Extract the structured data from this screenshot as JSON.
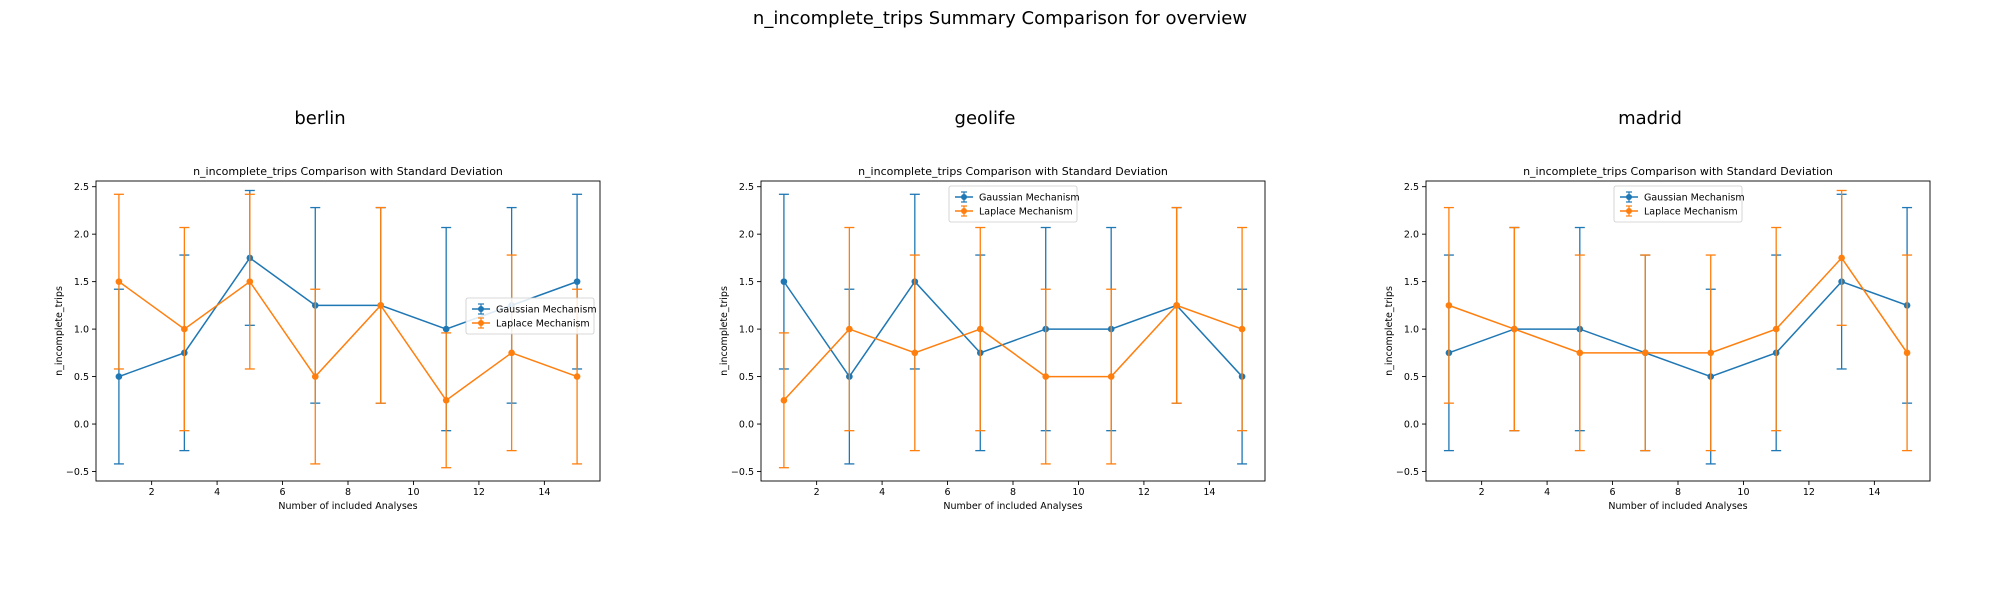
{
  "suptitle": "n_incomplete_trips Summary Comparison for overview",
  "colors": {
    "gaussian": "#1f77b4",
    "laplace": "#ff7f0e"
  },
  "chart_data": [
    {
      "type": "line",
      "panel_title": "berlin",
      "title": "n_incomplete_trips Comparison with Standard Deviation",
      "xlabel": "Number of included Analyses",
      "ylabel": "n_incomplete_trips",
      "xlim": [
        0.3,
        15.7
      ],
      "ylim": [
        -0.6,
        2.56
      ],
      "xticks": [
        2,
        4,
        6,
        8,
        10,
        12,
        14
      ],
      "yticks": [
        -0.5,
        0.0,
        0.5,
        1.0,
        1.5,
        2.0,
        2.5
      ],
      "legend_position": "center-right",
      "x": [
        1,
        3,
        5,
        7,
        9,
        11,
        13,
        15
      ],
      "series": [
        {
          "name": "Gaussian Mechanism",
          "color": "#1f77b4",
          "values": [
            0.5,
            0.75,
            1.75,
            1.25,
            1.25,
            1.0,
            1.25,
            1.5
          ],
          "std": [
            0.92,
            1.03,
            0.71,
            1.03,
            1.03,
            1.07,
            1.03,
            0.92
          ]
        },
        {
          "name": "Laplace Mechanism",
          "color": "#ff7f0e",
          "values": [
            1.5,
            1.0,
            1.5,
            0.5,
            1.25,
            0.25,
            0.75,
            0.5
          ],
          "std": [
            0.92,
            1.07,
            0.92,
            0.92,
            1.03,
            0.71,
            1.03,
            0.92
          ]
        }
      ]
    },
    {
      "type": "line",
      "panel_title": "geolife",
      "title": "n_incomplete_trips Comparison with Standard Deviation",
      "xlabel": "Number of included Analyses",
      "ylabel": "n_incomplete_trips",
      "xlim": [
        0.3,
        15.7
      ],
      "ylim": [
        -0.6,
        2.56
      ],
      "xticks": [
        2,
        4,
        6,
        8,
        10,
        12,
        14
      ],
      "yticks": [
        -0.5,
        0.0,
        0.5,
        1.0,
        1.5,
        2.0,
        2.5
      ],
      "legend_position": "upper-center",
      "x": [
        1,
        3,
        5,
        7,
        9,
        11,
        13,
        15
      ],
      "series": [
        {
          "name": "Gaussian Mechanism",
          "color": "#1f77b4",
          "values": [
            1.5,
            0.5,
            1.5,
            0.75,
            1.0,
            1.0,
            1.25,
            0.5
          ],
          "std": [
            0.92,
            0.92,
            0.92,
            1.03,
            1.07,
            1.07,
            1.03,
            0.92
          ]
        },
        {
          "name": "Laplace Mechanism",
          "color": "#ff7f0e",
          "values": [
            0.25,
            1.0,
            0.75,
            1.0,
            0.5,
            0.5,
            1.25,
            1.0
          ],
          "std": [
            0.71,
            1.07,
            1.03,
            1.07,
            0.92,
            0.92,
            1.03,
            1.07
          ]
        }
      ]
    },
    {
      "type": "line",
      "panel_title": "madrid",
      "title": "n_incomplete_trips Comparison with Standard Deviation",
      "xlabel": "Number of included Analyses",
      "ylabel": "n_incomplete_trips",
      "xlim": [
        0.3,
        15.7
      ],
      "ylim": [
        -0.6,
        2.56
      ],
      "xticks": [
        2,
        4,
        6,
        8,
        10,
        12,
        14
      ],
      "yticks": [
        -0.5,
        0.0,
        0.5,
        1.0,
        1.5,
        2.0,
        2.5
      ],
      "legend_position": "upper-center",
      "x": [
        1,
        3,
        5,
        7,
        9,
        11,
        13,
        15
      ],
      "series": [
        {
          "name": "Gaussian Mechanism",
          "color": "#1f77b4",
          "values": [
            0.75,
            1.0,
            1.0,
            0.75,
            0.5,
            0.75,
            1.5,
            1.25
          ],
          "std": [
            1.03,
            1.07,
            1.07,
            1.03,
            0.92,
            1.03,
            0.92,
            1.03
          ]
        },
        {
          "name": "Laplace Mechanism",
          "color": "#ff7f0e",
          "values": [
            1.25,
            1.0,
            0.75,
            0.75,
            0.75,
            1.0,
            1.75,
            0.75
          ],
          "std": [
            1.03,
            1.07,
            1.03,
            1.03,
            1.03,
            1.07,
            0.71,
            1.03
          ]
        }
      ]
    }
  ]
}
